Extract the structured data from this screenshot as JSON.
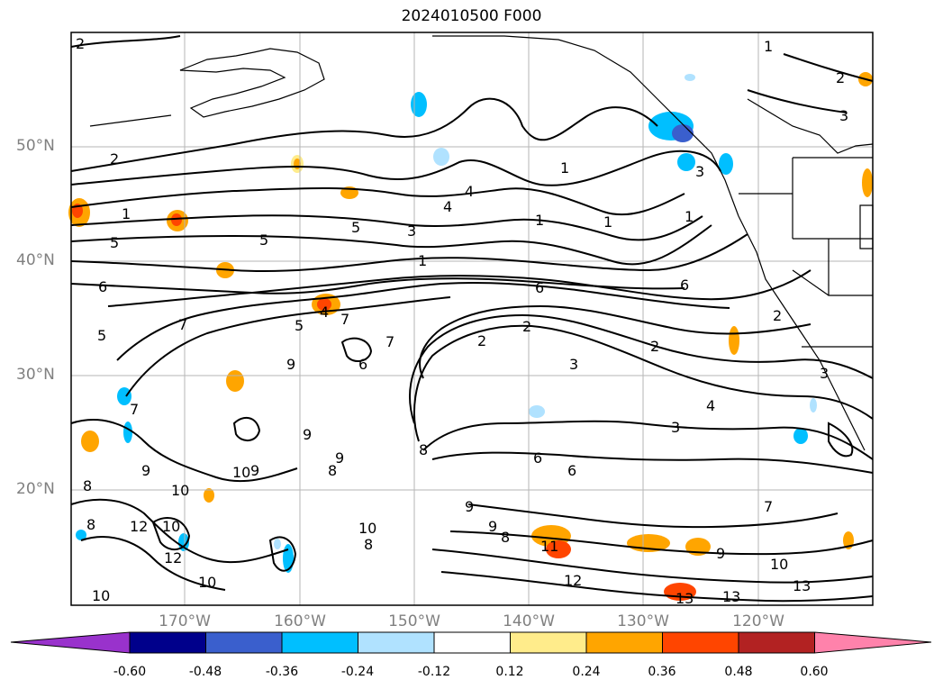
{
  "title": "2024010500 F000",
  "lat_labels": [
    "50°N",
    "40°N",
    "30°N",
    "20°N"
  ],
  "lon_labels": [
    "170°W",
    "160°W",
    "150°W",
    "140°W",
    "130°W",
    "120°W"
  ],
  "colorbar": {
    "ticks": [
      "-0.60",
      "-0.48",
      "-0.36",
      "-0.24",
      "-0.12",
      "0.12",
      "0.24",
      "0.36",
      "0.48",
      "0.60"
    ],
    "colors": [
      "#9932CC",
      "#00008B",
      "#3A5FCD",
      "#00BFFF",
      "#B0E2FF",
      "#FFFFFF",
      "#FFEC8B",
      "#FFA500",
      "#FF4500",
      "#B22222",
      "#FF82AB"
    ]
  },
  "contour_labels": [
    "1",
    "2",
    "3",
    "4",
    "5",
    "6",
    "7",
    "8",
    "9",
    "10",
    "11",
    "12",
    "13"
  ]
}
